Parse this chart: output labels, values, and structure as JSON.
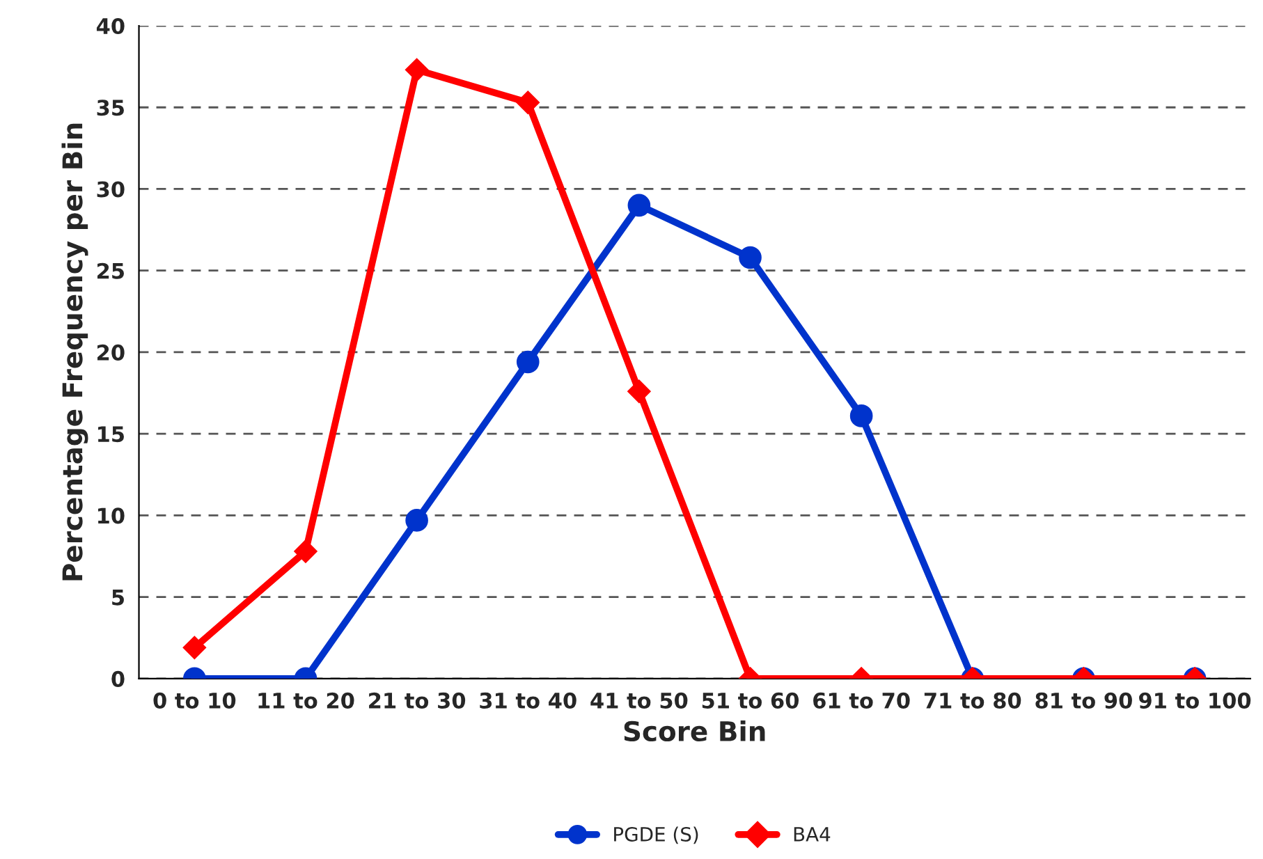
{
  "chart_data": {
    "type": "line",
    "xlabel": "Score Bin",
    "ylabel": "Percentage Frequency per Bin",
    "categories": [
      "0 to 10",
      "11 to 20",
      "21 to 30",
      "31 to 40",
      "41 to 50",
      "51 to 60",
      "61 to 70",
      "71 to 80",
      "81 to 90",
      "91 to 100"
    ],
    "series": [
      {
        "name": "PGDE (S)",
        "color": "#0033cc",
        "marker": "circle",
        "values": [
          0,
          0,
          9.7,
          19.4,
          29.0,
          25.8,
          16.1,
          0,
          0,
          0
        ]
      },
      {
        "name": "BA4",
        "color": "#ff0000",
        "marker": "diamond",
        "values": [
          1.9,
          7.8,
          37.3,
          35.3,
          17.6,
          0,
          0,
          0,
          0,
          0
        ]
      }
    ],
    "ylim": [
      0,
      40
    ],
    "yticks": [
      0,
      5,
      10,
      15,
      20,
      25,
      30,
      35,
      40
    ],
    "grid": "y",
    "legend": "bottom",
    "line_style": "solid"
  }
}
